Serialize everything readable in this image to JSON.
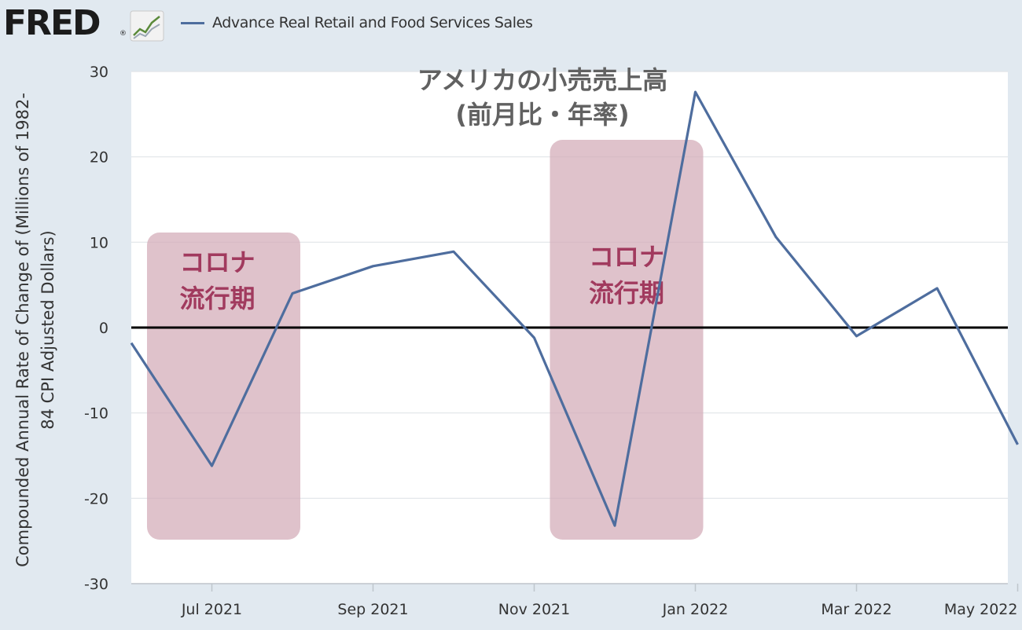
{
  "header": {
    "logo_text": "FRED",
    "logo_mark": "®",
    "logo_icon": "line-chart-icon",
    "legend_label": "Advance Real Retail and Food Services Sales",
    "legend_color": "#4e6d9e"
  },
  "annotations": {
    "title_lines": [
      "アメリカの小売売上高",
      "(前月比・年率)"
    ],
    "highlight_label_lines": [
      "コロナ",
      "流行期"
    ],
    "highlight_fill": "#d3aab7",
    "highlight_text_color": "#a13a5e"
  },
  "chart_data": {
    "type": "line",
    "title": "",
    "xlabel": "",
    "ylabel": "Compounded Annual Rate of Change of (Millions of 1982-84 CPI Adjusted Dollars)",
    "ylabel_lines": [
      "Compounded Annual Rate of Change of (Millions of 1982-",
      "84 CPI Adjusted Dollars)"
    ],
    "ylim": [
      -30,
      30
    ],
    "yticks": [
      30,
      20,
      10,
      0,
      -10,
      -20,
      -30
    ],
    "xticks": [
      "Jul 2021",
      "Sep 2021",
      "Nov 2021",
      "Jan 2022",
      "Mar 2022",
      "May 2022"
    ],
    "grid": true,
    "legend_position": "top",
    "series": [
      {
        "name": "Advance Real Retail and Food Services Sales",
        "color": "#4e6d9e",
        "x": [
          "2021-06",
          "2021-07",
          "2021-08",
          "2021-09",
          "2021-10",
          "2021-11",
          "2021-12",
          "2022-01",
          "2022-02",
          "2022-03",
          "2022-04",
          "2022-05"
        ],
        "values": [
          -1.8,
          -16.2,
          4.0,
          7.2,
          8.9,
          -1.2,
          -23.2,
          27.6,
          10.6,
          -1.0,
          4.6,
          -13.7
        ]
      }
    ],
    "highlight_periods": [
      {
        "start": "2021-06",
        "end": "2021-08",
        "label": "コロナ 流行期"
      },
      {
        "start": "2021-11",
        "end": "2022-01",
        "label": "コロナ 流行期"
      }
    ]
  }
}
